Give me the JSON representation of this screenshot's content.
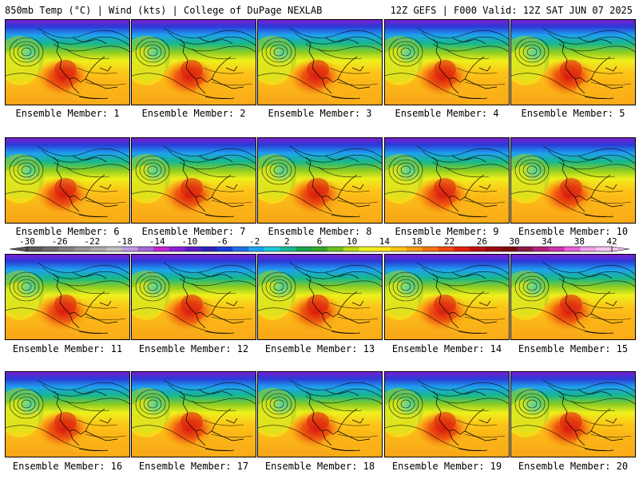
{
  "header": {
    "left": "850mb Temp (°C) | Wind (kts) | College of DuPage NEXLAB",
    "right": "12Z GEFS | F000 Valid: 12Z SAT JUN 07 2025"
  },
  "members": [
    "Ensemble Member: 1",
    "Ensemble Member: 2",
    "Ensemble Member: 3",
    "Ensemble Member: 4",
    "Ensemble Member: 5",
    "Ensemble Member: 6",
    "Ensemble Member: 7",
    "Ensemble Member: 8",
    "Ensemble Member: 9",
    "Ensemble Member: 10",
    "Ensemble Member: 11",
    "Ensemble Member: 12",
    "Ensemble Member: 13",
    "Ensemble Member: 14",
    "Ensemble Member: 15",
    "Ensemble Member: 16",
    "Ensemble Member: 17",
    "Ensemble Member: 18",
    "Ensemble Member: 19",
    "Ensemble Member: 20"
  ],
  "colorbar": {
    "ticks": [
      "-30",
      "-26",
      "-22",
      "-18",
      "-14",
      "-10",
      "-6",
      "-2",
      "2",
      "6",
      "10",
      "14",
      "18",
      "22",
      "26",
      "30",
      "34",
      "38",
      "42"
    ],
    "colors": [
      "#5a5a5a",
      "#6e6e6e",
      "#828282",
      "#969696",
      "#aaaaaa",
      "#c0c0c0",
      "#c29be0",
      "#a964d8",
      "#c026d3",
      "#8b1fd0",
      "#5b1bc6",
      "#2a23b8",
      "#1a3fd6",
      "#1e6fe8",
      "#1fa2ee",
      "#1ecad8",
      "#17b996",
      "#19a34a",
      "#36a62a",
      "#6fbe22",
      "#b7d81a",
      "#eef01c",
      "#fce41c",
      "#fcc418",
      "#f99a14",
      "#f57210",
      "#ef480e",
      "#e0200c",
      "#c01010",
      "#9a0c0c",
      "#7a0808",
      "#8a1a46",
      "#b0207e",
      "#d030b0",
      "#e860d6",
      "#f0a0e8",
      "#f4c6f0"
    ]
  }
}
